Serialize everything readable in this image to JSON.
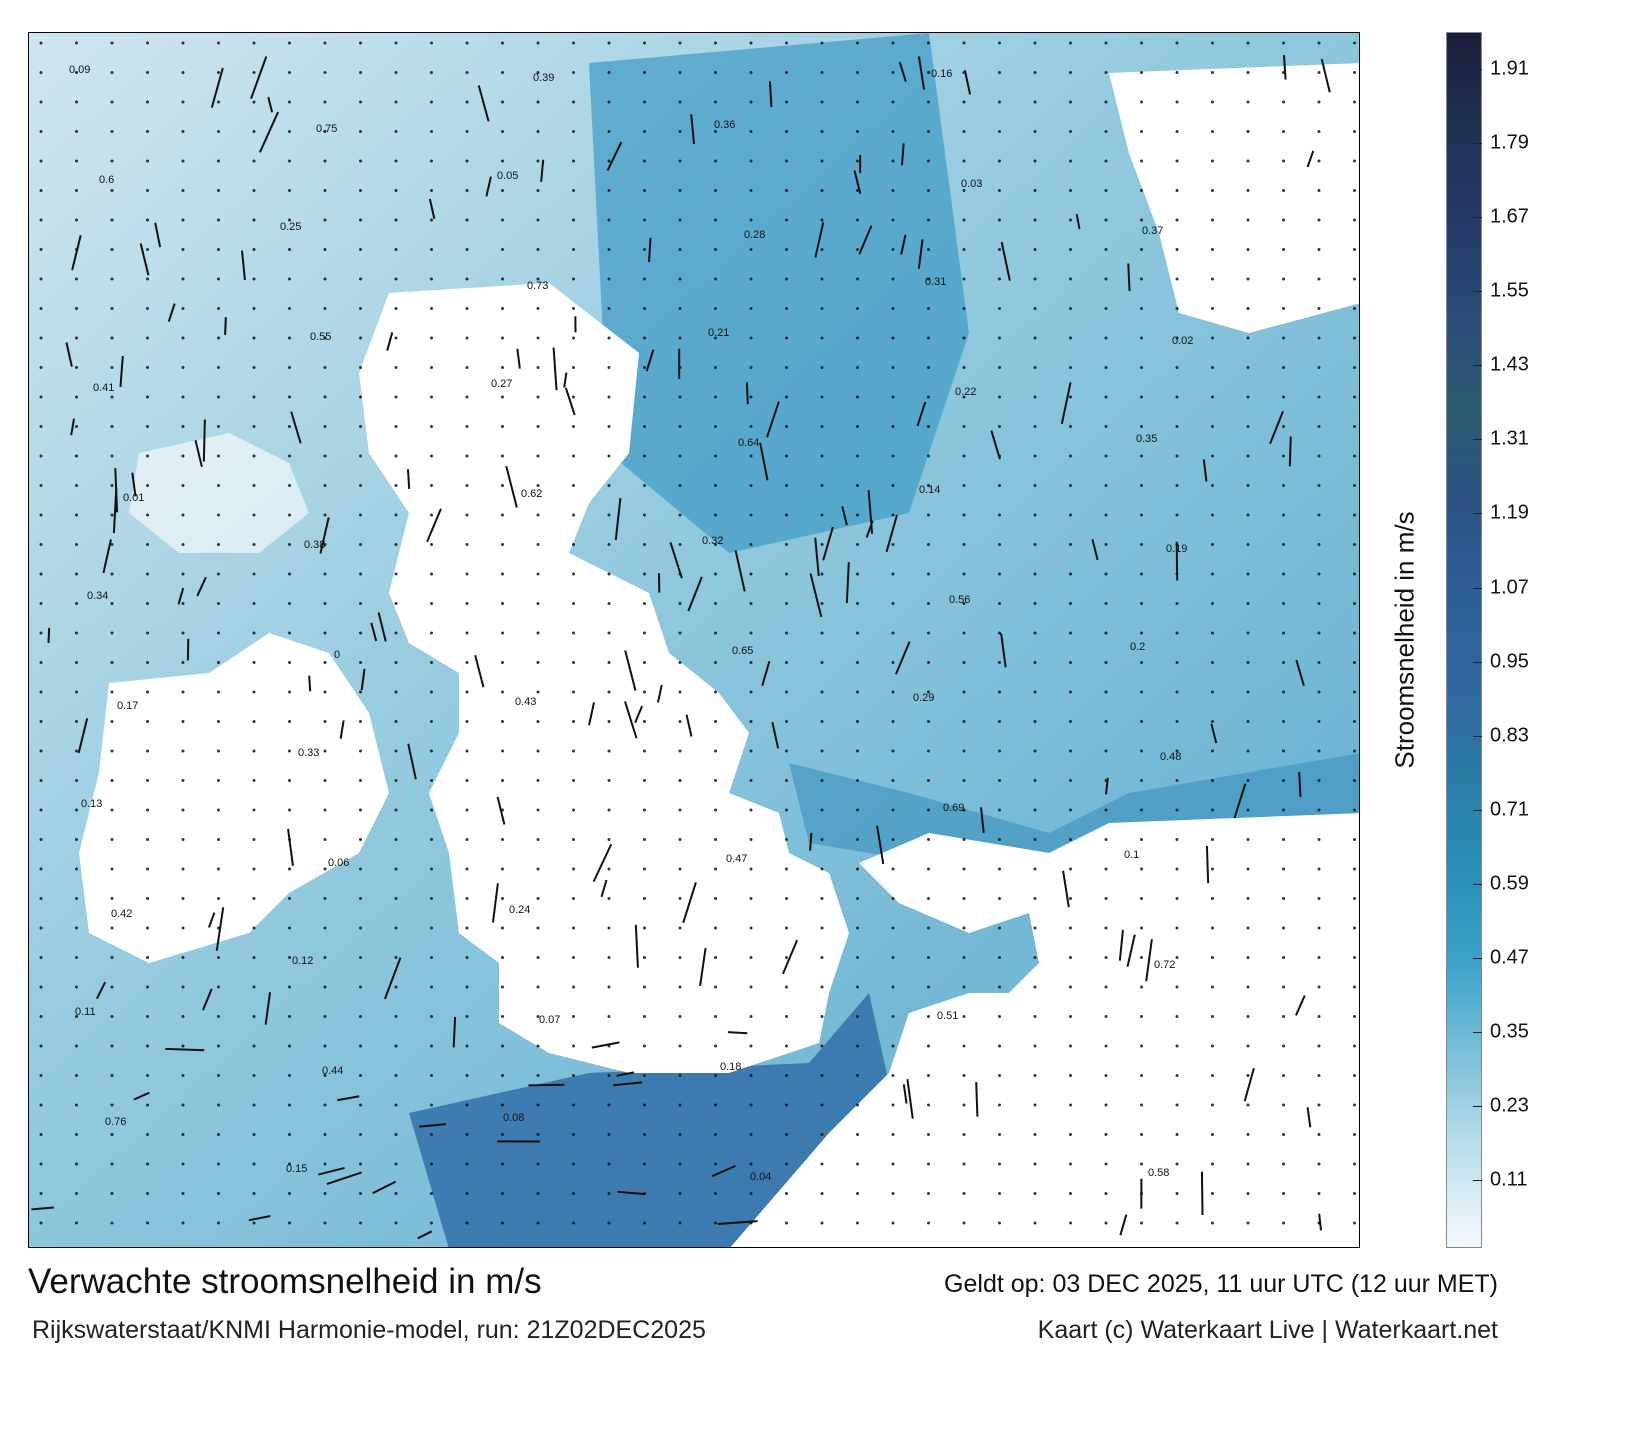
{
  "title": "Verwachte stroomsnelheid in m/s",
  "subtitle": "Rijkswaterstaat/KNMI Harmonie-model, run: 21Z02DEC2025",
  "valid_time": "Geldt op: 03 DEC 2025, 11 uur UTC (12 uur MET)",
  "credit": "Kaart (c) Waterkaart Live | Waterkaart.net",
  "colorbar": {
    "label": "Stroomsnelheid in m/s",
    "ticks": [
      "1.91",
      "1.79",
      "1.67",
      "1.55",
      "1.43",
      "1.31",
      "1.19",
      "1.07",
      "0.95",
      "0.83",
      "0.71",
      "0.59",
      "0.47",
      "0.35",
      "0.23",
      "0.11"
    ],
    "range": [
      0,
      1.97
    ],
    "colors": [
      "#f4f9fb",
      "#bfe0ec",
      "#7fc2da",
      "#3ea3c8",
      "#2a8fb8",
      "#2a7ea4",
      "#2f669e",
      "#2d5e96",
      "#2b5283",
      "#2c5a6e",
      "#2a4b78",
      "#263a68",
      "#1e3152",
      "#1b1d3a"
    ]
  },
  "speed_labels": [
    "0.09",
    "0.25",
    "0.27",
    "0.32",
    "0.29",
    "0.1",
    "0.11",
    "0.15",
    "0.05",
    "0.21",
    "0.14",
    "0.2",
    "0.13",
    "0.12",
    "0.08",
    "0.36",
    "0.31",
    "0.35",
    "0.34",
    "0.33",
    "0.24",
    "0.18",
    "0.16",
    "0.37",
    "0.41",
    "0.38",
    "0.43",
    "0.47",
    "0.51",
    "0.58",
    "0.6",
    "0.55",
    "0.62",
    "0.65",
    "0.69",
    "0.72",
    "0.76",
    "0.75",
    "0.73",
    "0.64",
    "0.56",
    "0.48",
    "0.42",
    "0.44",
    "0.39",
    "0.28",
    "0.22",
    "0.19",
    "0.17",
    "0.06",
    "0.07",
    "0.04",
    "0.03",
    "0.02",
    "0.01",
    "0"
  ]
}
